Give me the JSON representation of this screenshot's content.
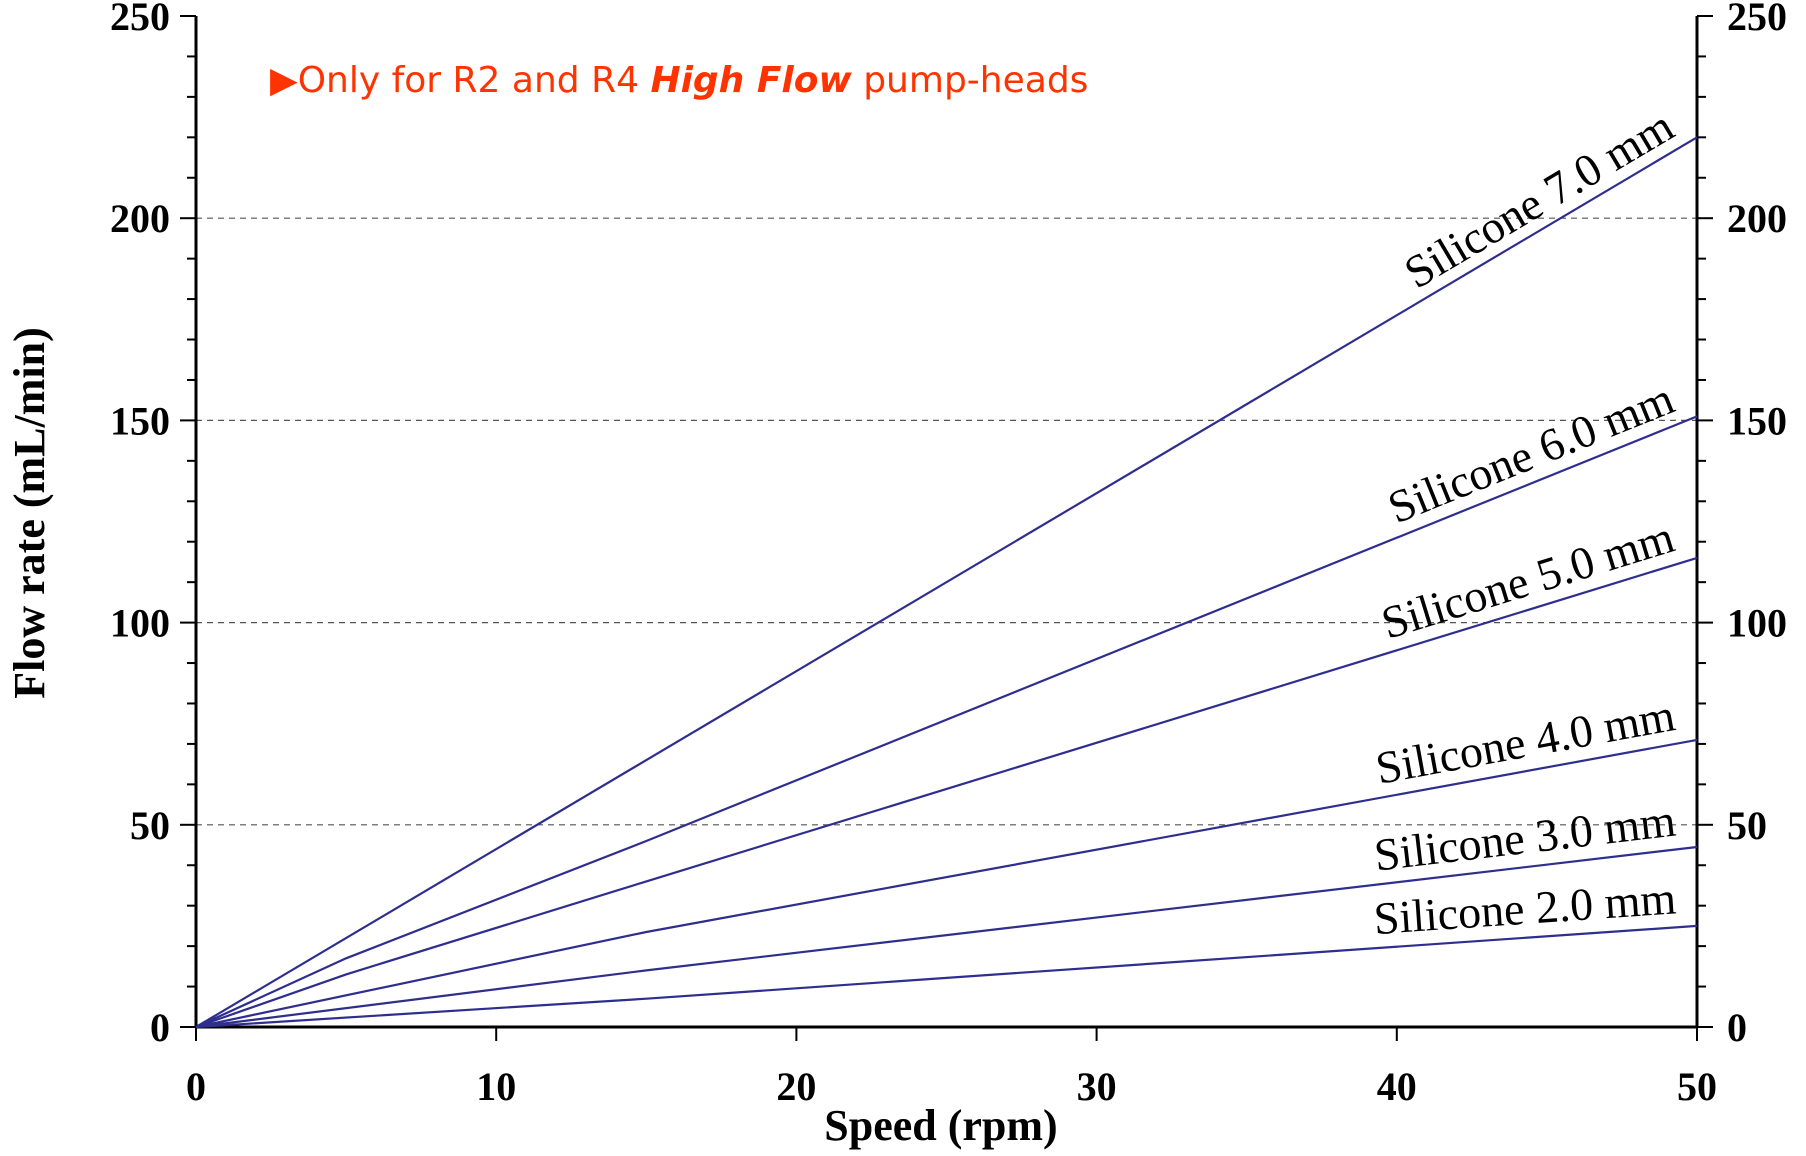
{
  "chart_data": {
    "type": "line",
    "xlabel": "Speed (rpm)",
    "ylabel": "Flow rate (mL/min)",
    "xlim": [
      0,
      50
    ],
    "ylim": [
      0,
      250
    ],
    "x_ticks": [
      0,
      10,
      20,
      30,
      40,
      50
    ],
    "y_ticks": [
      0,
      50,
      100,
      150,
      200,
      250
    ],
    "secondary_y_axis": true,
    "grid": "horizontal dashed",
    "line_color": "#2e2e8f",
    "annotation": {
      "marker": "▶",
      "text_before": "Only for R2 and R4 ",
      "text_emphasis": "High Flow",
      "text_after": " pump-heads",
      "color": "#ff3300"
    },
    "series": [
      {
        "name": "Silicone 7.0 mm",
        "x": [
          0,
          50
        ],
        "y": [
          0,
          220
        ]
      },
      {
        "name": "Silicone 6.0 mm",
        "x": [
          0,
          5,
          15,
          50
        ],
        "y": [
          0,
          17,
          46,
          151
        ]
      },
      {
        "name": "Silicone 5.0 mm",
        "x": [
          0,
          5,
          15,
          50
        ],
        "y": [
          0,
          13,
          36,
          116
        ]
      },
      {
        "name": "Silicone 4.0 mm",
        "x": [
          0,
          15,
          50
        ],
        "y": [
          0,
          23.5,
          71
        ]
      },
      {
        "name": "Silicone 3.0 mm",
        "x": [
          0,
          15,
          50
        ],
        "y": [
          0,
          14,
          44.5
        ]
      },
      {
        "name": "Silicone 2.0 mm",
        "x": [
          0,
          15,
          50
        ],
        "y": [
          0,
          7,
          25
        ]
      }
    ]
  }
}
